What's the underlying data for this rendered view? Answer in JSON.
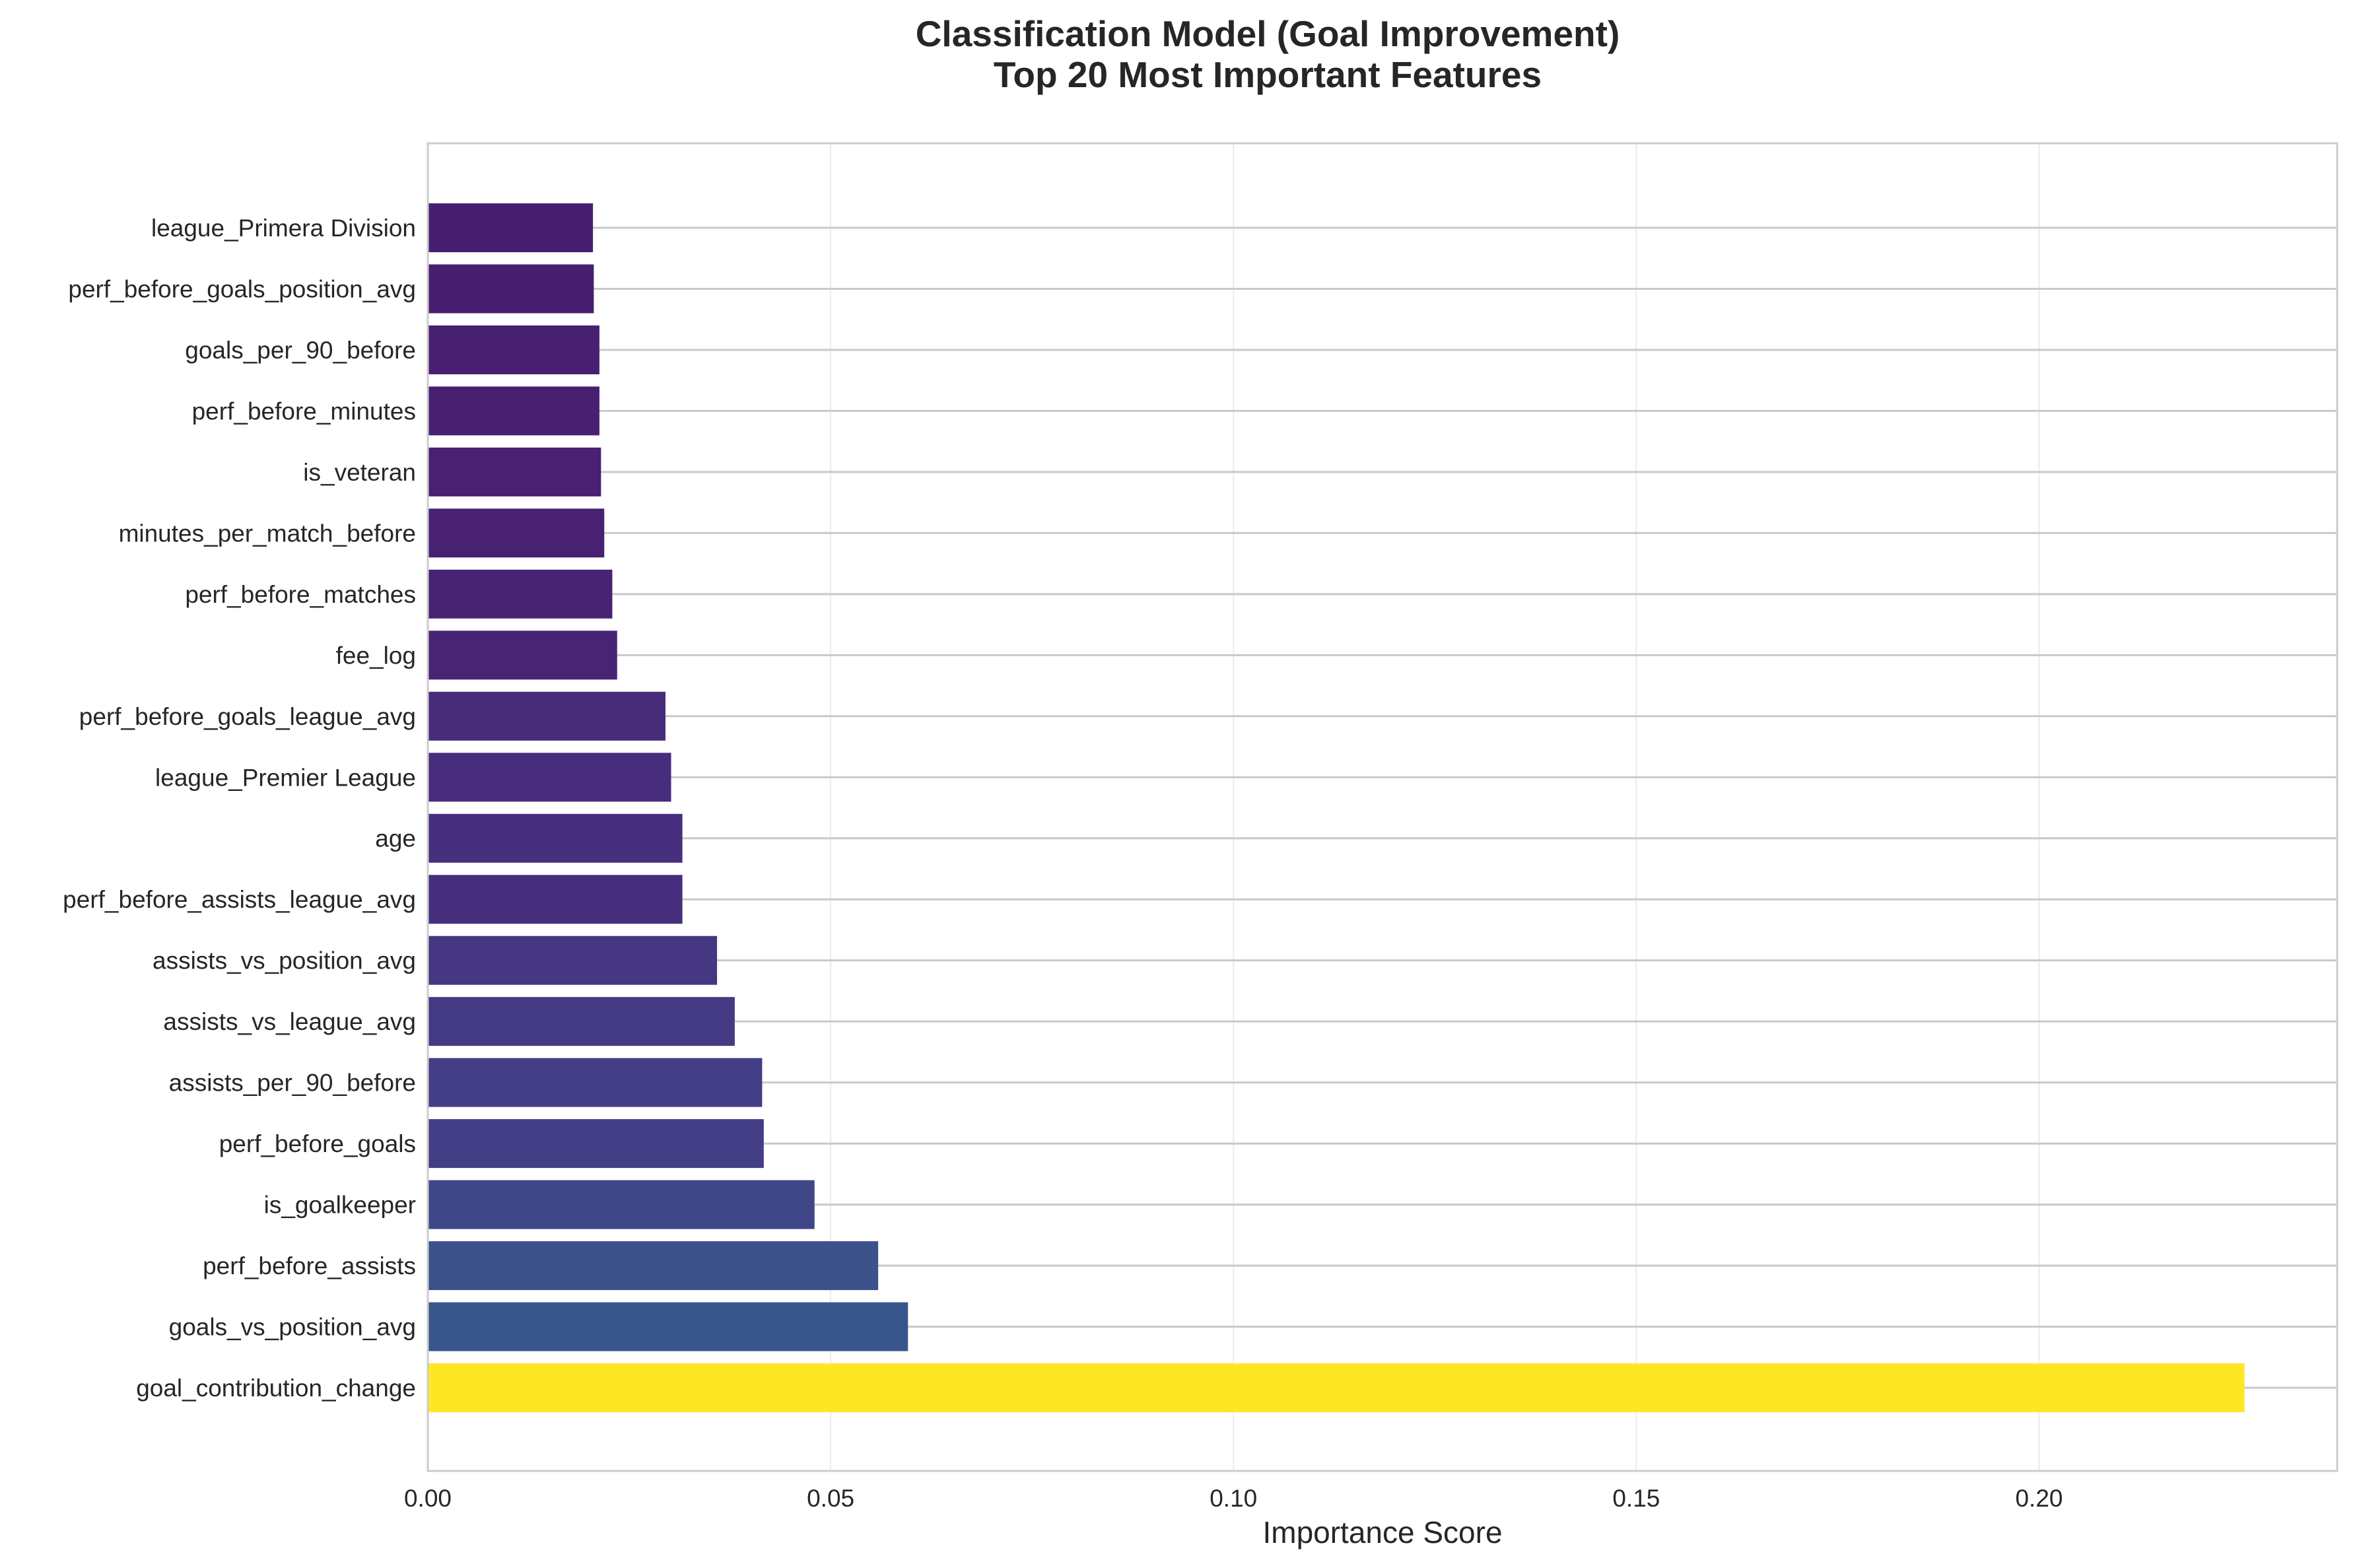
{
  "chart_data": {
    "type": "bar",
    "orientation": "horizontal",
    "title": "Classification Model (Goal Improvement)",
    "subtitle": "Top 20 Most Important Features",
    "xlabel": "Importance Score",
    "ylabel": "",
    "xlim": [
      0,
      0.237
    ],
    "x_ticks": [
      "0.00",
      "0.05",
      "0.10",
      "0.15",
      "0.20"
    ],
    "x_tick_values": [
      0,
      0.05,
      0.1,
      0.15,
      0.2
    ],
    "grid": true,
    "colormap": "viridis",
    "categories": [
      "league_Primera Division",
      "perf_before_goals_position_avg",
      "goals_per_90_before",
      "perf_before_minutes",
      "is_veteran",
      "minutes_per_match_before",
      "perf_before_matches",
      "fee_log",
      "perf_before_goals_league_avg",
      "league_Premier League",
      "age",
      "perf_before_assists_league_avg",
      "assists_vs_position_avg",
      "assists_vs_league_avg",
      "assists_per_90_before",
      "perf_before_goals",
      "is_goalkeeper",
      "perf_before_assists",
      "goals_vs_position_avg",
      "goal_contribution_change"
    ],
    "values": [
      0.0205,
      0.0206,
      0.0213,
      0.0213,
      0.0215,
      0.0219,
      0.0229,
      0.0235,
      0.0295,
      0.0302,
      0.0316,
      0.0316,
      0.0359,
      0.0381,
      0.0415,
      0.0417,
      0.048,
      0.0559,
      0.0596,
      0.2255
    ],
    "colors": [
      "#481f70",
      "#481f70",
      "#482071",
      "#482071",
      "#482172",
      "#482173",
      "#482374",
      "#482475",
      "#472c7a",
      "#472d7b",
      "#46307e",
      "#46307e",
      "#453781",
      "#443a83",
      "#433e85",
      "#433e85",
      "#3f4788",
      "#3b528b",
      "#39568c",
      "#fde725"
    ]
  }
}
